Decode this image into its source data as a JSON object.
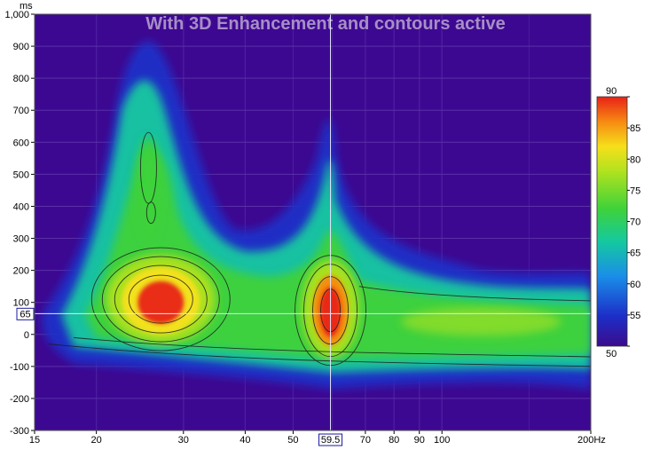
{
  "chart_data": {
    "type": "heatmap",
    "title": "With 3D Enhancement and contours active",
    "y_unit": "ms",
    "x_unit": "Hz",
    "x_scale": "log",
    "xlim": [
      15,
      200
    ],
    "ylim": [
      -300,
      1000
    ],
    "x_ticks": [
      {
        "value": 15,
        "label": "15"
      },
      {
        "value": 20,
        "label": "20"
      },
      {
        "value": 30,
        "label": "30"
      },
      {
        "value": 40,
        "label": "40"
      },
      {
        "value": 50,
        "label": "50"
      },
      {
        "value": 70,
        "label": "70"
      },
      {
        "value": 80,
        "label": "80"
      },
      {
        "value": 90,
        "label": "90"
      },
      {
        "value": 100,
        "label": "100"
      },
      {
        "value": 200,
        "label": "200Hz"
      }
    ],
    "y_ticks": [
      {
        "value": 1000,
        "label": "1,000"
      },
      {
        "value": 900,
        "label": "900"
      },
      {
        "value": 800,
        "label": "800"
      },
      {
        "value": 700,
        "label": "700"
      },
      {
        "value": 600,
        "label": "600"
      },
      {
        "value": 500,
        "label": "500"
      },
      {
        "value": 400,
        "label": "400"
      },
      {
        "value": 300,
        "label": "300"
      },
      {
        "value": 200,
        "label": "200"
      },
      {
        "value": 100,
        "label": "100"
      },
      {
        "value": 0,
        "label": "0"
      },
      {
        "value": -100,
        "label": "-100"
      },
      {
        "value": -200,
        "label": "-200"
      },
      {
        "value": -300,
        "label": "-300"
      }
    ],
    "cursor": {
      "x": 59.5,
      "x_label": "59.5",
      "y": 65,
      "y_label": "65"
    },
    "colorbar": {
      "min": 50,
      "max": 90,
      "ticks": [
        {
          "value": 90,
          "label": "90"
        },
        {
          "value": 85,
          "label": "85"
        },
        {
          "value": 80,
          "label": "80"
        },
        {
          "value": 75,
          "label": "75"
        },
        {
          "value": 70,
          "label": "70"
        },
        {
          "value": 65,
          "label": "65"
        },
        {
          "value": 60,
          "label": "60"
        },
        {
          "value": 55,
          "label": "55"
        },
        {
          "value": 50,
          "label": "50"
        }
      ],
      "colors": [
        "#3c0c8c",
        "#1c2ec8",
        "#1a8ee8",
        "#14c9a0",
        "#3ed23a",
        "#b0e21e",
        "#f6e01a",
        "#f78a12",
        "#e82218"
      ]
    },
    "background_color": "#3d0891",
    "grid": true,
    "regions": [
      {
        "name": "main-peak",
        "x": 27,
        "y": 100,
        "level": 88
      },
      {
        "name": "second-peak",
        "x": 59.5,
        "y": 70,
        "level": 89
      },
      {
        "name": "tail",
        "x": 120,
        "y": 40,
        "level": 77
      }
    ]
  }
}
